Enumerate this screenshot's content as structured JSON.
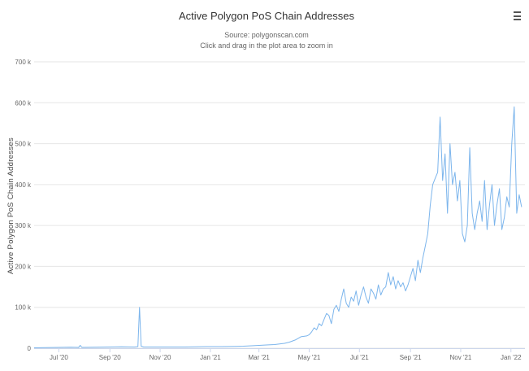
{
  "chart": {
    "title": "Active Polygon PoS Chain Addresses",
    "subtitle_source": "Source: polygonscan.com",
    "subtitle_hint": "Click and drag in the plot area to zoom in",
    "menu_icon": "hamburger-menu-icon",
    "line_color": "#7cb5ec"
  },
  "chart_data": {
    "type": "line",
    "title": "Active Polygon PoS Chain Addresses",
    "xlabel": "",
    "ylabel": "Active Polygon PoS Chain Addresses",
    "xlim": [
      "2020-06-01",
      "2022-01-18"
    ],
    "ylim": [
      0,
      700000
    ],
    "grid": true,
    "legend": "none",
    "y_ticks": [
      0,
      100000,
      200000,
      300000,
      400000,
      500000,
      600000,
      700000
    ],
    "y_tick_labels": [
      "0",
      "100 k",
      "200 k",
      "300 k",
      "400 k",
      "500 k",
      "600 k",
      "700 k"
    ],
    "x_ticks": [
      "2020-07-01",
      "2020-09-01",
      "2020-11-01",
      "2021-01-01",
      "2021-03-01",
      "2021-05-01",
      "2021-07-01",
      "2021-09-01",
      "2021-11-01",
      "2022-01-01"
    ],
    "x_tick_labels": [
      "Jul '20",
      "Sep '20",
      "Nov '20",
      "Jan '21",
      "Mar '21",
      "May '21",
      "Jul '21",
      "Sep '21",
      "Nov '21",
      "Jan '22"
    ],
    "series": [
      {
        "x": [
          "2020-06-01",
          "2020-06-15",
          "2020-07-01",
          "2020-07-15",
          "2020-07-25",
          "2020-07-27",
          "2020-07-29",
          "2020-08-15",
          "2020-09-01",
          "2020-09-15",
          "2020-10-01",
          "2020-10-05",
          "2020-10-07",
          "2020-10-09",
          "2020-10-12",
          "2020-10-15",
          "2020-11-01",
          "2020-11-15",
          "2020-12-01",
          "2020-12-15",
          "2021-01-01",
          "2021-01-15",
          "2021-02-01",
          "2021-02-10",
          "2021-02-20",
          "2021-03-01",
          "2021-03-10",
          "2021-03-20",
          "2021-04-01",
          "2021-04-07",
          "2021-04-14",
          "2021-04-21",
          "2021-04-28",
          "2021-05-01",
          "2021-05-04",
          "2021-05-07",
          "2021-05-10",
          "2021-05-13",
          "2021-05-16",
          "2021-05-19",
          "2021-05-22",
          "2021-05-25",
          "2021-05-28",
          "2021-05-31",
          "2021-06-03",
          "2021-06-06",
          "2021-06-09",
          "2021-06-12",
          "2021-06-15",
          "2021-06-18",
          "2021-06-21",
          "2021-06-24",
          "2021-06-27",
          "2021-06-30",
          "2021-07-03",
          "2021-07-06",
          "2021-07-09",
          "2021-07-12",
          "2021-07-15",
          "2021-07-18",
          "2021-07-21",
          "2021-07-24",
          "2021-07-27",
          "2021-07-30",
          "2021-08-02",
          "2021-08-05",
          "2021-08-08",
          "2021-08-11",
          "2021-08-14",
          "2021-08-17",
          "2021-08-20",
          "2021-08-23",
          "2021-08-26",
          "2021-08-29",
          "2021-09-01",
          "2021-09-04",
          "2021-09-07",
          "2021-09-10",
          "2021-09-13",
          "2021-09-16",
          "2021-09-19",
          "2021-09-22",
          "2021-09-25",
          "2021-09-28",
          "2021-10-01",
          "2021-10-04",
          "2021-10-07",
          "2021-10-10",
          "2021-10-13",
          "2021-10-16",
          "2021-10-19",
          "2021-10-22",
          "2021-10-25",
          "2021-10-28",
          "2021-10-31",
          "2021-11-03",
          "2021-11-06",
          "2021-11-09",
          "2021-11-12",
          "2021-11-15",
          "2021-11-18",
          "2021-11-21",
          "2021-11-24",
          "2021-11-27",
          "2021-11-30",
          "2021-12-03",
          "2021-12-06",
          "2021-12-09",
          "2021-12-12",
          "2021-12-15",
          "2021-12-18",
          "2021-12-21",
          "2021-12-24",
          "2021-12-27",
          "2021-12-30",
          "2022-01-02",
          "2022-01-05",
          "2022-01-08",
          "2022-01-11",
          "2022-01-14"
        ],
        "values": [
          1000,
          1500,
          2000,
          2500,
          2000,
          7000,
          2000,
          2500,
          3000,
          3500,
          3000,
          4000,
          100000,
          5000,
          3000,
          3000,
          3000,
          3000,
          3000,
          3500,
          4000,
          4000,
          4500,
          5000,
          6000,
          7000,
          8000,
          9000,
          12000,
          15000,
          20000,
          28000,
          30000,
          33000,
          40000,
          50000,
          45000,
          60000,
          55000,
          70000,
          85000,
          80000,
          60000,
          95000,
          105000,
          90000,
          120000,
          145000,
          110000,
          100000,
          125000,
          115000,
          140000,
          105000,
          130000,
          150000,
          125000,
          110000,
          145000,
          135000,
          120000,
          155000,
          130000,
          145000,
          150000,
          185000,
          155000,
          175000,
          145000,
          165000,
          150000,
          160000,
          140000,
          155000,
          175000,
          195000,
          165000,
          215000,
          185000,
          220000,
          250000,
          280000,
          350000,
          400000,
          415000,
          430000,
          565000,
          410000,
          475000,
          330000,
          500000,
          400000,
          430000,
          360000,
          410000,
          280000,
          260000,
          300000,
          490000,
          330000,
          290000,
          330000,
          360000,
          310000,
          410000,
          290000,
          350000,
          400000,
          300000,
          350000,
          390000,
          290000,
          320000,
          370000,
          345000,
          500000,
          590000,
          330000,
          375000,
          345000
        ]
      }
    ]
  }
}
